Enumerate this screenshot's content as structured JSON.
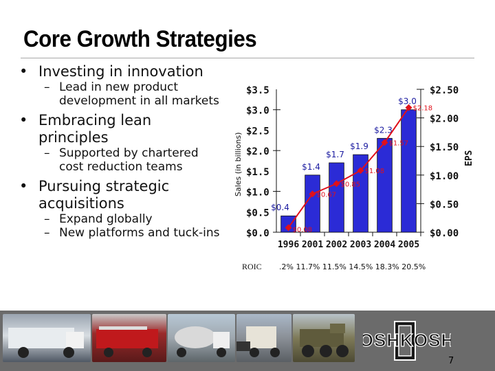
{
  "slide": {
    "title": "Core Growth Strategies",
    "page_number": "7",
    "bullets": [
      {
        "text": "Investing in innovation",
        "subs": [
          "Lead in new product development in all markets"
        ]
      },
      {
        "text": "Embracing lean principles",
        "subs": [
          "Supported by chartered cost reduction teams"
        ]
      },
      {
        "text": "Pursuing strategic acquisitions",
        "subs": [
          "Expand globally",
          "New platforms and tuck-ins"
        ]
      }
    ],
    "logo_text": "OSHKOSH"
  },
  "chart_data": {
    "type": "bar",
    "categories": [
      "1996",
      "2001",
      "2002",
      "2003",
      "2004",
      "2005"
    ],
    "series": [
      {
        "name": "Sales (in billions)",
        "type": "bar",
        "axis": "left",
        "values": [
          0.4,
          1.4,
          1.7,
          1.9,
          2.3,
          3.0
        ],
        "labels": [
          "$0.4",
          "$1.4",
          "$1.7",
          "$1.9",
          "$2.3",
          "$3.0"
        ],
        "color": "#2b2bd6"
      },
      {
        "name": "EPS",
        "type": "line",
        "axis": "right",
        "values": [
          0.08,
          0.67,
          0.85,
          1.08,
          1.57,
          2.18
        ],
        "labels": [
          "$0.08",
          "$0.67",
          "$0.85",
          "$1.08",
          "$1.57",
          "$2.18"
        ],
        "color": "#e0101a"
      }
    ],
    "y_left": {
      "label": "Sales (in billions)",
      "ylim": [
        0,
        3.5
      ],
      "ticks": [
        "$0.0",
        "$0.5",
        "$1.0",
        "$1.5",
        "$2.0",
        "$2.5",
        "$3.0",
        "$3.5"
      ]
    },
    "y_right": {
      "label": "EPS",
      "ylim": [
        0,
        2.5
      ],
      "ticks": [
        "$0.00",
        "$0.50",
        "$1.00",
        "$1.50",
        "$2.00",
        "$2.50"
      ]
    },
    "roic": {
      "label": "ROIC",
      "values": [
        ".2%",
        "11.7%",
        "11.5%",
        "14.5%",
        "18.3%",
        "20.5%"
      ]
    }
  }
}
